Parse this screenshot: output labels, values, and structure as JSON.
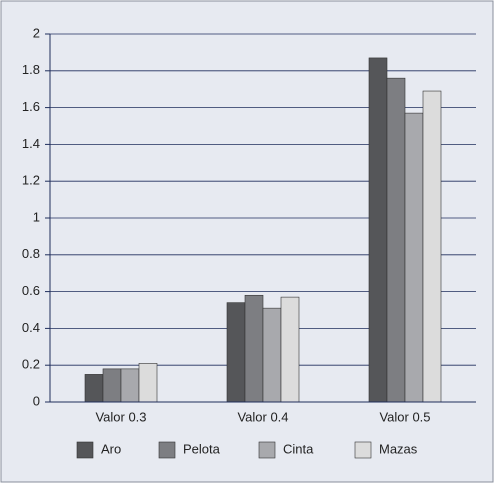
{
  "chart_data": {
    "type": "bar",
    "categories": [
      "Valor 0.3",
      "Valor 0.4",
      "Valor 0.5"
    ],
    "series": [
      {
        "name": "Aro",
        "color": "#555659",
        "values": [
          0.15,
          0.54,
          1.87
        ]
      },
      {
        "name": "Pelota",
        "color": "#7d7e82",
        "values": [
          0.18,
          0.58,
          1.76
        ]
      },
      {
        "name": "Cinta",
        "color": "#a8a9ad",
        "values": [
          0.18,
          0.51,
          1.57
        ]
      },
      {
        "name": "Mazas",
        "color": "#dcdcdc",
        "values": [
          0.21,
          0.57,
          1.69
        ]
      }
    ],
    "ylim": [
      0,
      2
    ],
    "yticks": [
      0,
      0.2,
      0.4,
      0.6,
      0.8,
      1,
      1.2,
      1.4,
      1.6,
      1.8,
      2
    ],
    "grid": true,
    "legend": "bottom"
  }
}
